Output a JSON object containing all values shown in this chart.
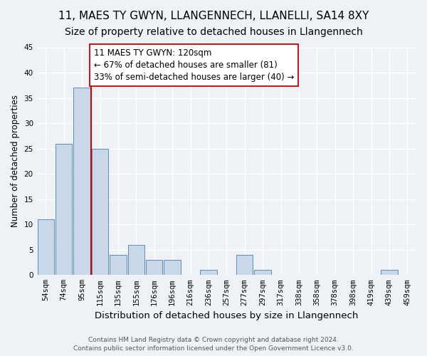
{
  "title": "11, MAES TY GWYN, LLANGENNECH, LLANELLI, SA14 8XY",
  "subtitle": "Size of property relative to detached houses in Llangennech",
  "xlabel": "Distribution of detached houses by size in Llangennech",
  "ylabel": "Number of detached properties",
  "bar_labels": [
    "54sqm",
    "74sqm",
    "95sqm",
    "115sqm",
    "135sqm",
    "155sqm",
    "176sqm",
    "196sqm",
    "216sqm",
    "236sqm",
    "257sqm",
    "277sqm",
    "297sqm",
    "317sqm",
    "338sqm",
    "358sqm",
    "378sqm",
    "398sqm",
    "419sqm",
    "439sqm",
    "459sqm"
  ],
  "bar_values": [
    11,
    26,
    37,
    25,
    4,
    6,
    3,
    3,
    0,
    1,
    0,
    4,
    1,
    0,
    0,
    0,
    0,
    0,
    0,
    1,
    0
  ],
  "bar_color": "#c8d8e8",
  "bar_edge_color": "#5b8db8",
  "highlight_line_color": "#cc0000",
  "annotation_title": "11 MAES TY GWYN: 120sqm",
  "annotation_line1": "← 67% of detached houses are smaller (81)",
  "annotation_line2": "33% of semi-detached houses are larger (40) →",
  "annotation_box_color": "#ffffff",
  "annotation_box_edge": "#cc0000",
  "ylim": [
    0,
    45
  ],
  "yticks": [
    0,
    5,
    10,
    15,
    20,
    25,
    30,
    35,
    40,
    45
  ],
  "background_color": "#eef2f7",
  "footer_line1": "Contains HM Land Registry data © Crown copyright and database right 2024.",
  "footer_line2": "Contains public sector information licensed under the Open Government Licence v3.0.",
  "title_fontsize": 11,
  "subtitle_fontsize": 10,
  "xlabel_fontsize": 9.5,
  "ylabel_fontsize": 8.5,
  "tick_fontsize": 7.5,
  "annotation_fontsize": 8.5,
  "footer_fontsize": 6.5
}
